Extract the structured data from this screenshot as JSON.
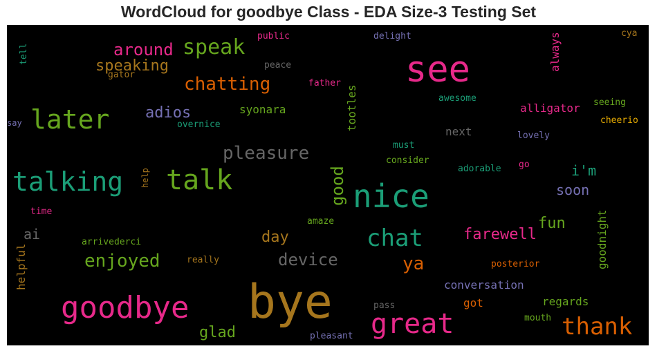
{
  "title": "WordCloud for goodbye Class - EDA Size-3 Testing Set",
  "background_color": "#000000",
  "palette": [
    "#d95f02",
    "#7570b3",
    "#e7298a",
    "#66a61e",
    "#e6ab02",
    "#a6761d",
    "#666666",
    "#1b9e77"
  ],
  "words": [
    {
      "id": "bye",
      "text": "bye",
      "color": "#a6761d"
    },
    {
      "id": "see",
      "text": "see",
      "color": "#e7298a"
    },
    {
      "id": "nice",
      "text": "nice",
      "color": "#1b9e77"
    },
    {
      "id": "goodbye",
      "text": "goodbye",
      "color": "#e7298a"
    },
    {
      "id": "great",
      "text": "great",
      "color": "#e7298a"
    },
    {
      "id": "talk",
      "text": "talk",
      "color": "#66a61e"
    },
    {
      "id": "talking",
      "text": "talking",
      "color": "#1b9e77"
    },
    {
      "id": "later",
      "text": "later",
      "color": "#66a61e"
    },
    {
      "id": "thank",
      "text": "thank",
      "color": "#d95f02"
    },
    {
      "id": "chat",
      "text": "chat",
      "color": "#1b9e77"
    },
    {
      "id": "speak",
      "text": "speak",
      "color": "#66a61e"
    },
    {
      "id": "pleasure",
      "text": "pleasure",
      "color": "#666666"
    },
    {
      "id": "chatting",
      "text": "chatting",
      "color": "#d95f02"
    },
    {
      "id": "enjoyed",
      "text": "enjoyed",
      "color": "#66a61e"
    },
    {
      "id": "around",
      "text": "around",
      "color": "#e7298a"
    },
    {
      "id": "device",
      "text": "device",
      "color": "#666666"
    },
    {
      "id": "ya",
      "text": "ya",
      "color": "#d95f02"
    },
    {
      "id": "good",
      "text": "good",
      "color": "#66a61e"
    },
    {
      "id": "speaking",
      "text": "speaking",
      "color": "#a6761d"
    },
    {
      "id": "adios",
      "text": "adios",
      "color": "#7570b3"
    },
    {
      "id": "farewell",
      "text": "farewell",
      "color": "#e7298a"
    },
    {
      "id": "soon",
      "text": "soon",
      "color": "#7570b3"
    },
    {
      "id": "day",
      "text": "day",
      "color": "#a6761d"
    },
    {
      "id": "glad",
      "text": "glad",
      "color": "#66a61e"
    },
    {
      "id": "fun",
      "text": "fun",
      "color": "#66a61e"
    },
    {
      "id": "im",
      "text": "i'm",
      "color": "#1b9e77"
    },
    {
      "id": "ai",
      "text": "ai",
      "color": "#666666"
    },
    {
      "id": "alligator",
      "text": "alligator",
      "color": "#e7298a"
    },
    {
      "id": "conversation",
      "text": "conversation",
      "color": "#7570b3"
    },
    {
      "id": "syonara",
      "text": "syonara",
      "color": "#66a61e"
    },
    {
      "id": "tootles",
      "text": "tootles",
      "color": "#66a61e"
    },
    {
      "id": "always",
      "text": "always",
      "color": "#e7298a"
    },
    {
      "id": "goodnight",
      "text": "goodnight",
      "color": "#66a61e"
    },
    {
      "id": "regards",
      "text": "regards",
      "color": "#66a61e"
    },
    {
      "id": "next",
      "text": "next",
      "color": "#666666"
    },
    {
      "id": "got",
      "text": "got",
      "color": "#d95f02"
    },
    {
      "id": "helpful",
      "text": "helpful",
      "color": "#a6761d"
    },
    {
      "id": "awesome",
      "text": "awesome",
      "color": "#1b9e77"
    },
    {
      "id": "seeing",
      "text": "seeing",
      "color": "#66a61e"
    },
    {
      "id": "cheerio",
      "text": "cheerio",
      "color": "#e6ab02"
    },
    {
      "id": "overnice",
      "text": "overnice",
      "color": "#1b9e77"
    },
    {
      "id": "lovely",
      "text": "lovely",
      "color": "#7570b3"
    },
    {
      "id": "must",
      "text": "must",
      "color": "#1b9e77"
    },
    {
      "id": "consider",
      "text": "consider",
      "color": "#66a61e"
    },
    {
      "id": "adorable",
      "text": "adorable",
      "color": "#1b9e77"
    },
    {
      "id": "go",
      "text": "go",
      "color": "#e7298a"
    },
    {
      "id": "help",
      "text": "help",
      "color": "#a6761d"
    },
    {
      "id": "time",
      "text": "time",
      "color": "#e7298a"
    },
    {
      "id": "amaze",
      "text": "amaze",
      "color": "#66a61e"
    },
    {
      "id": "arrivederci",
      "text": "arrivederci",
      "color": "#66a61e"
    },
    {
      "id": "really",
      "text": "really",
      "color": "#a6761d"
    },
    {
      "id": "posterior",
      "text": "posterior",
      "color": "#d95f02"
    },
    {
      "id": "pass",
      "text": "pass",
      "color": "#666666"
    },
    {
      "id": "mouth",
      "text": "mouth",
      "color": "#66a61e"
    },
    {
      "id": "pleasant",
      "text": "pleasant",
      "color": "#7570b3"
    },
    {
      "id": "public",
      "text": "public",
      "color": "#e7298a"
    },
    {
      "id": "delight",
      "text": "delight",
      "color": "#7570b3"
    },
    {
      "id": "cya",
      "text": "cya",
      "color": "#a6761d"
    },
    {
      "id": "peace",
      "text": "peace",
      "color": "#666666"
    },
    {
      "id": "gator",
      "text": "gator",
      "color": "#a6761d"
    },
    {
      "id": "father",
      "text": "father",
      "color": "#e7298a"
    },
    {
      "id": "tell",
      "text": "tell",
      "color": "#1b9e77"
    },
    {
      "id": "say",
      "text": "say",
      "color": "#7570b3"
    }
  ]
}
